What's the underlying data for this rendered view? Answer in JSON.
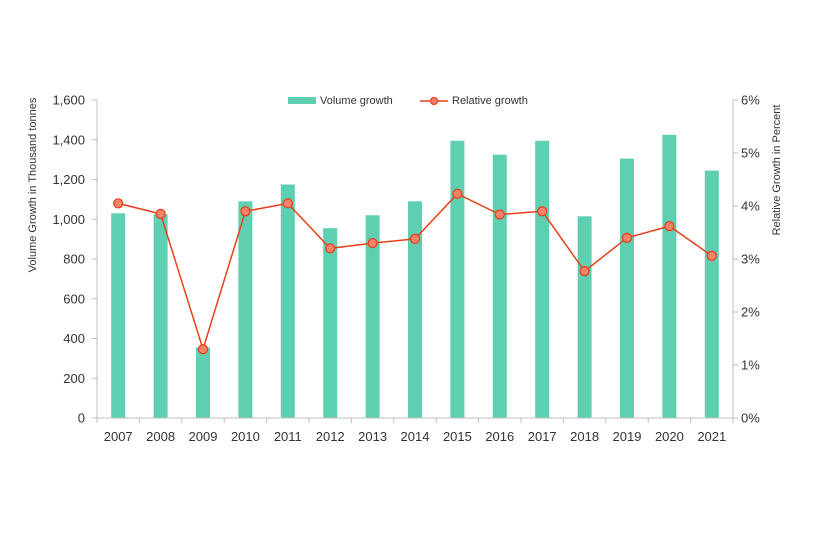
{
  "chart_data": {
    "type": "bar",
    "categories": [
      "2007",
      "2008",
      "2009",
      "2010",
      "2011",
      "2012",
      "2013",
      "2014",
      "2015",
      "2016",
      "2017",
      "2018",
      "2019",
      "2020",
      "2021"
    ],
    "series": [
      {
        "name": "Volume growth",
        "type": "bar",
        "axis": "left",
        "color": "#5ecfb0",
        "values": [
          1030,
          1025,
          355,
          1090,
          1175,
          955,
          1020,
          1090,
          1395,
          1325,
          1395,
          1015,
          1305,
          1425,
          1245
        ]
      },
      {
        "name": "Relative growth",
        "type": "line",
        "axis": "right",
        "color": "#e8401c",
        "marker_fill": "#f4836b",
        "values": [
          4.05,
          3.85,
          1.3,
          3.9,
          4.05,
          3.2,
          3.3,
          3.38,
          4.23,
          3.84,
          3.9,
          2.77,
          3.4,
          3.62,
          3.06
        ]
      }
    ],
    "ylabel": "Volume Growth in Thousand tonnes",
    "y2label": "Relative Growth in Percent",
    "ylim": [
      0,
      1600
    ],
    "y2lim": [
      0,
      6
    ],
    "y_ticks": [
      "0",
      "200",
      "400",
      "600",
      "800",
      "1,000",
      "1,200",
      "1,400",
      "1,600"
    ],
    "y2_ticks": [
      "0%",
      "1%",
      "2%",
      "3%",
      "4%",
      "5%",
      "6%"
    ],
    "legend_position": "top-center",
    "grid": false
  }
}
